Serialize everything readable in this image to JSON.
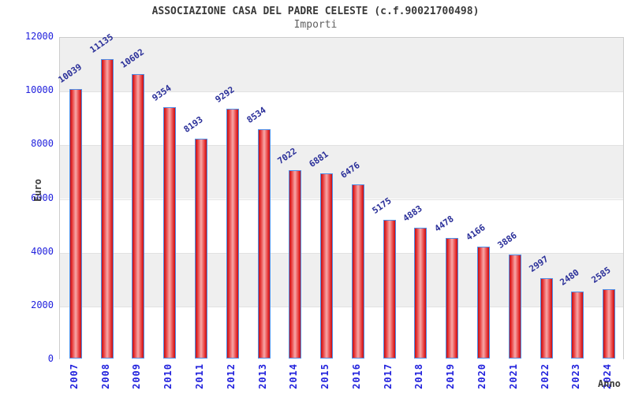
{
  "chart_data": {
    "type": "bar",
    "title": "ASSOCIAZIONE CASA DEL PADRE CELESTE (c.f.90021700498)",
    "subtitle": "Importi",
    "xlabel": "Anno",
    "ylabel": "Euro",
    "categories": [
      "2007",
      "2008",
      "2009",
      "2010",
      "2011",
      "2012",
      "2013",
      "2014",
      "2015",
      "2016",
      "2017",
      "2018",
      "2019",
      "2020",
      "2021",
      "2022",
      "2023",
      "2024"
    ],
    "values": [
      10039,
      11135,
      10602,
      9354,
      8193,
      9292,
      8534,
      7022,
      6881,
      6476,
      5175,
      4883,
      4478,
      4166,
      3886,
      2997,
      2480,
      2585
    ],
    "ylim": [
      0,
      12000
    ],
    "yticks": [
      0,
      2000,
      4000,
      6000,
      8000,
      10000,
      12000
    ],
    "grid": "alternating-horizontal-bands",
    "legend_position": "none"
  },
  "colors": {
    "band_gray": "#efefef",
    "band_white": "#ffffff",
    "bar_edge_blue": "#4e8fe8",
    "bar_red_dark": "#c40d12",
    "bar_red_mid": "#e83a3a",
    "bar_red_light": "#f7a8a8",
    "tick_blue": "#2222dd",
    "value_label_navy": "#2a2f99",
    "title_gray": "#3a3a3a"
  }
}
